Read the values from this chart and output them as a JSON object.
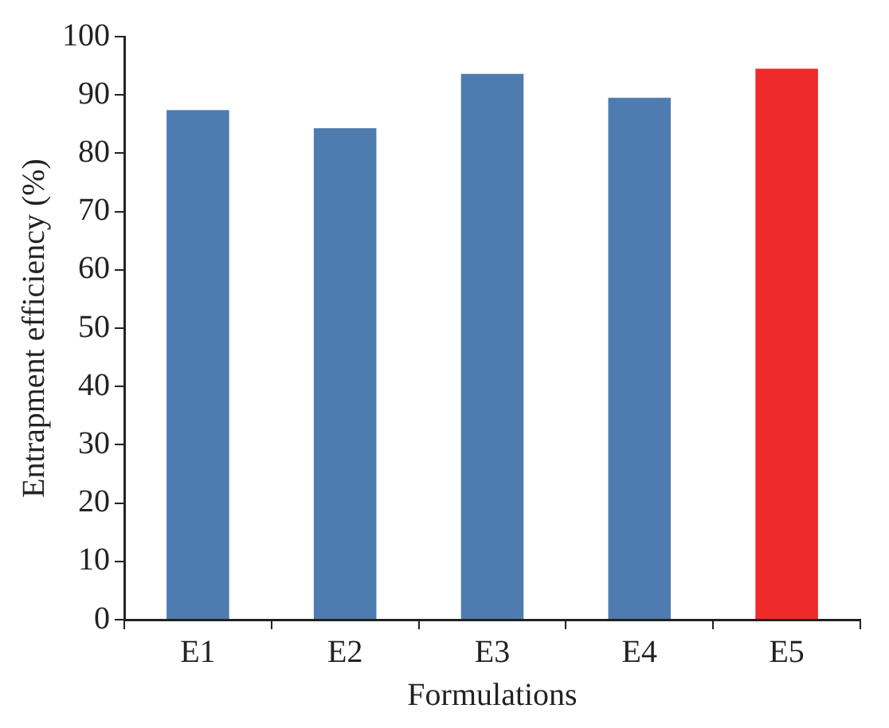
{
  "chart_data": {
    "type": "bar",
    "xlabel": "Formulations",
    "ylabel": "Entrapment efficiency (%)",
    "categories": [
      "E1",
      "E2",
      "E3",
      "E4",
      "E5"
    ],
    "values": [
      87.4,
      84.3,
      93.6,
      89.5,
      94.5
    ],
    "colors": [
      "#4e7cb0",
      "#4e7cb0",
      "#4e7cb0",
      "#4e7cb0",
      "#ee2a2a"
    ],
    "ylim": [
      0,
      100
    ],
    "yticks": [
      0,
      10,
      20,
      30,
      40,
      50,
      60,
      70,
      80,
      90,
      100
    ],
    "grid": false,
    "legend": false
  }
}
